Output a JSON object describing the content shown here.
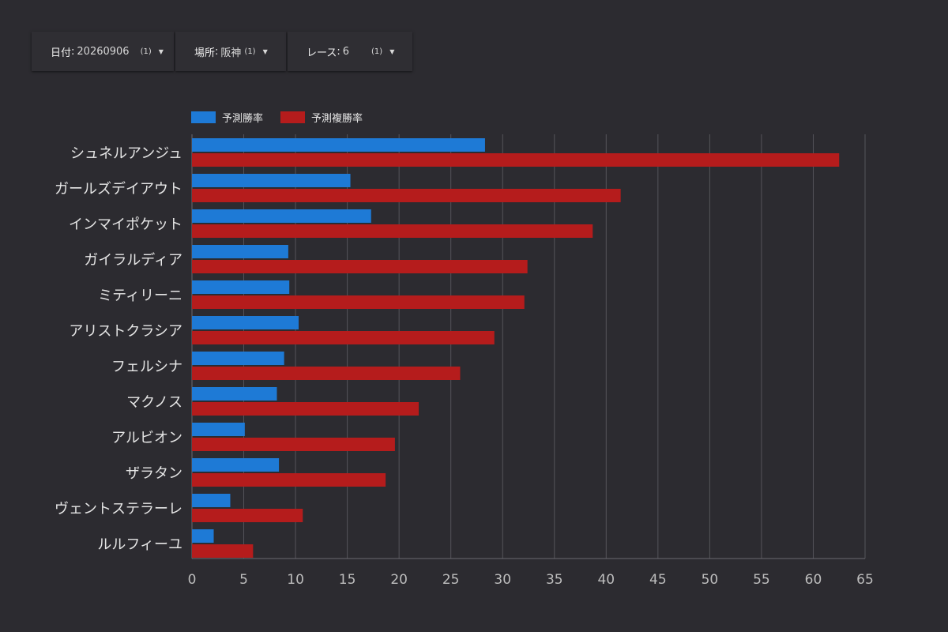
{
  "filters": [
    {
      "key": "日付",
      "value": "20260906",
      "count": "(1)"
    },
    {
      "key": "場所",
      "value": "阪神",
      "count": "(1)"
    },
    {
      "key": "レース",
      "value": "6",
      "count": "(1)"
    }
  ],
  "colors": {
    "win": "#1e7ad6",
    "place": "#b51c1c",
    "grid": "#55545a",
    "background": "#2c2b30"
  },
  "chart_data": {
    "type": "bar",
    "orientation": "horizontal",
    "categories": [
      "シュネルアンジュ",
      "ガールズデイアウト",
      "インマイポケット",
      "ガイラルディア",
      "ミティリーニ",
      "アリストクラシア",
      "フェルシナ",
      "マクノス",
      "アルビオン",
      "ザラタン",
      "ヴェントステラーレ",
      "ルルフィーユ"
    ],
    "series": [
      {
        "name": "予測勝率",
        "values": [
          28.3,
          15.3,
          17.3,
          9.3,
          9.4,
          10.3,
          8.9,
          8.2,
          5.1,
          8.4,
          3.7,
          2.1
        ]
      },
      {
        "name": "予測複勝率",
        "values": [
          62.5,
          41.4,
          38.7,
          32.4,
          32.1,
          29.2,
          25.9,
          21.9,
          19.6,
          18.7,
          10.7,
          5.9
        ]
      }
    ],
    "xticks": [
      "0",
      "5",
      "10",
      "15",
      "20",
      "25",
      "30",
      "35",
      "40",
      "45",
      "50",
      "55",
      "60",
      "65"
    ],
    "xlim": [
      0,
      65
    ],
    "grid": true,
    "legend": "top-left"
  }
}
